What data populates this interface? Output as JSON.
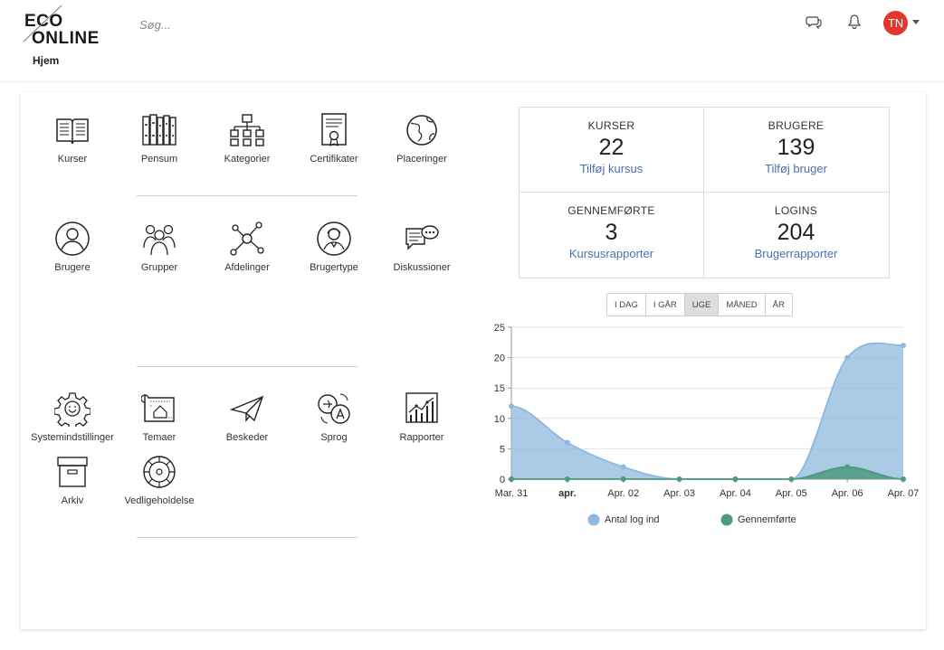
{
  "header": {
    "logo": "ECO ONLINE",
    "logo_line1": "ECO",
    "logo_line2": "ONLINE",
    "search_placeholder": "Søg...",
    "user_initials": "TN"
  },
  "breadcrumb": "Hjem",
  "tiles": {
    "kurser": "Kurser",
    "pensum": "Pensum",
    "kategorier": "Kategorier",
    "certifikater": "Certifikater",
    "placeringer": "Placeringer",
    "brugere": "Brugere",
    "grupper": "Grupper",
    "afdelinger": "Afdelinger",
    "brugertype": "Brugertype",
    "diskussioner": "Diskussioner",
    "systemindstillinger": "Systemindstillinger",
    "temaer": "Temaer",
    "beskeder": "Beskeder",
    "sprog": "Sprog",
    "rapporter": "Rapporter",
    "arkiv": "Arkiv",
    "vedligeholdelse": "Vedligeholdelse"
  },
  "stats": {
    "kurser": {
      "title": "KURSER",
      "value": "22",
      "action": "Tilføj kursus"
    },
    "brugere": {
      "title": "BRUGERE",
      "value": "139",
      "action": "Tilføj bruger"
    },
    "gennemforte": {
      "title": "GENNEMFØRTE",
      "value": "3",
      "action": "Kursusrapporter"
    },
    "logins": {
      "title": "LOGINS",
      "value": "204",
      "action": "Brugerrapporter"
    }
  },
  "range": {
    "idag": "I DAG",
    "igar": "I GÅR",
    "uge": "UGE",
    "maned": "MÅNED",
    "ar": "ÅR",
    "selected": "UGE"
  },
  "colors": {
    "accent_link": "#4a6fb3",
    "avatar": "#e0392b",
    "series_logins": "#8fb8de",
    "series_completed": "#4e9a7e"
  },
  "icons": [
    "message-icon",
    "bell-icon",
    "caret-down-icon"
  ],
  "chart_data": {
    "type": "area",
    "x": [
      "Mar. 31",
      "apr.",
      "Apr. 02",
      "Apr. 03",
      "Apr. 04",
      "Apr. 05",
      "Apr. 06",
      "Apr. 07"
    ],
    "yticks": [
      0,
      5,
      10,
      15,
      20,
      25
    ],
    "ylim": [
      0,
      25
    ],
    "grid": true,
    "legend": "bottom",
    "series": [
      {
        "name": "Antal log ind",
        "values": [
          12,
          6,
          2,
          0,
          0,
          0,
          20,
          22
        ]
      },
      {
        "name": "Gennemførte",
        "values": [
          0,
          0,
          0,
          0,
          0,
          0,
          2,
          0
        ]
      }
    ]
  }
}
